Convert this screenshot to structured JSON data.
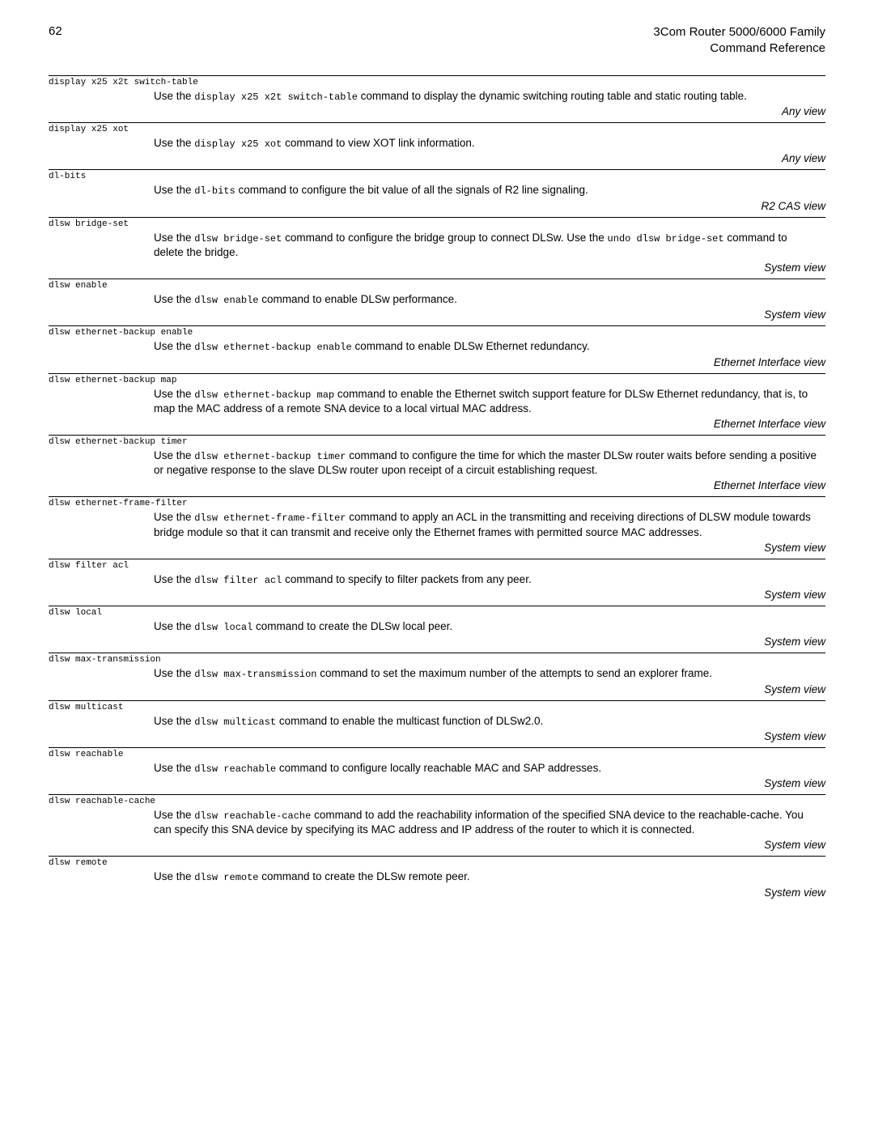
{
  "header": {
    "page_number": "62",
    "title_line1": "3Com Router 5000/6000 Family",
    "title_line2": "Command Reference"
  },
  "entries": [
    {
      "cmd": "display x25 x2t switch-table",
      "desc_pre": "Use the ",
      "desc_mono": "display x25 x2t switch-table",
      "desc_post": " command to display the dynamic switching routing table and static routing table.",
      "view": "Any view"
    },
    {
      "cmd": "display x25 xot",
      "desc_pre": "Use the ",
      "desc_mono": "display x25 xot",
      "desc_post": " command to view XOT link information.",
      "view": "Any view"
    },
    {
      "cmd": "dl-bits",
      "desc_pre": "Use the ",
      "desc_mono": "dl-bits",
      "desc_post": " command to configure the bit value of all the signals of R2 line signaling.",
      "view": "R2 CAS view"
    },
    {
      "cmd": "dlsw bridge-set",
      "desc_pre": "Use the ",
      "desc_mono": "dlsw bridge-set",
      "desc_mid": " command to configure the bridge group to connect DLSw. Use the ",
      "desc_mono2": "undo dlsw bridge-set",
      "desc_post": " command to delete the bridge.",
      "view": "System view"
    },
    {
      "cmd": "dlsw enable",
      "desc_pre": "Use the ",
      "desc_mono": "dlsw enable",
      "desc_post": " command to enable DLSw performance.",
      "view": "System view"
    },
    {
      "cmd": "dlsw ethernet-backup enable",
      "desc_pre": "Use the ",
      "desc_mono": "dlsw ethernet-backup enable",
      "desc_post": " command to enable DLSw Ethernet redundancy.",
      "view": "Ethernet Interface view"
    },
    {
      "cmd": "dlsw ethernet-backup map",
      "desc_pre": "Use the ",
      "desc_mono": "dlsw ethernet-backup map",
      "desc_post": " command to enable the Ethernet switch support feature for DLSw Ethernet redundancy, that is, to map the MAC address of a remote SNA device to a local virtual MAC address.",
      "view": "Ethernet Interface view"
    },
    {
      "cmd": "dlsw ethernet-backup timer",
      "desc_pre": "Use the ",
      "desc_mono": "dlsw ethernet-backup timer",
      "desc_post": " command to configure the time for which the master DLSw router waits before sending a positive or negative response to the slave DLSw router upon receipt of a circuit establishing request.",
      "view": "Ethernet Interface view"
    },
    {
      "cmd": "dlsw ethernet-frame-filter",
      "desc_pre": "Use the ",
      "desc_mono": "dlsw ethernet-frame-filter",
      "desc_post": " command to apply an ACL in the transmitting and receiving directions of DLSW module towards bridge module so that it can transmit and receive only the Ethernet frames with permitted source MAC addresses.",
      "view": "System view"
    },
    {
      "cmd": "dlsw filter acl",
      "desc_pre": "Use the ",
      "desc_mono": "dlsw filter acl",
      "desc_post": " command to specify to filter packets from any peer.",
      "view": "System view"
    },
    {
      "cmd": "dlsw local",
      "desc_pre": "Use the ",
      "desc_mono": "dlsw local",
      "desc_post": " command to create the DLSw local peer.",
      "view": "System view"
    },
    {
      "cmd": "dlsw max-transmission",
      "desc_pre": "Use the ",
      "desc_mono": "dlsw max-transmission",
      "desc_post": " command to set the maximum number of the attempts to send an explorer frame.",
      "view": "System view"
    },
    {
      "cmd": "dlsw multicast",
      "desc_pre": "Use the ",
      "desc_mono": "dlsw multicast",
      "desc_post": " command to enable the multicast function of DLSw2.0.",
      "view": "System view"
    },
    {
      "cmd": "dlsw reachable",
      "desc_pre": "Use the ",
      "desc_mono": "dlsw reachable",
      "desc_post": " command to configure locally reachable MAC and SAP addresses.",
      "view": "System view"
    },
    {
      "cmd": "dlsw reachable-cache",
      "desc_pre": "Use the ",
      "desc_mono": "dlsw reachable-cache",
      "desc_post": " command to add the reachability information of the specified SNA device to the reachable-cache. You can specify this SNA device by specifying its MAC address and IP address of the router to which it is connected.",
      "view": "System view"
    },
    {
      "cmd": "dlsw remote",
      "desc_pre": "Use the ",
      "desc_mono": "dlsw remote",
      "desc_post": " command to create the DLSw remote peer.",
      "view": "System view"
    }
  ]
}
